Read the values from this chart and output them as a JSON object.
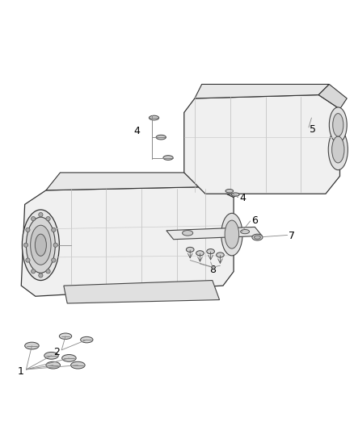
{
  "bg_color": "#ffffff",
  "fig_width": 4.38,
  "fig_height": 5.33,
  "dpi": 100,
  "label_color": "#000000",
  "label_fontsize": 9,
  "line_color": "#888888"
}
